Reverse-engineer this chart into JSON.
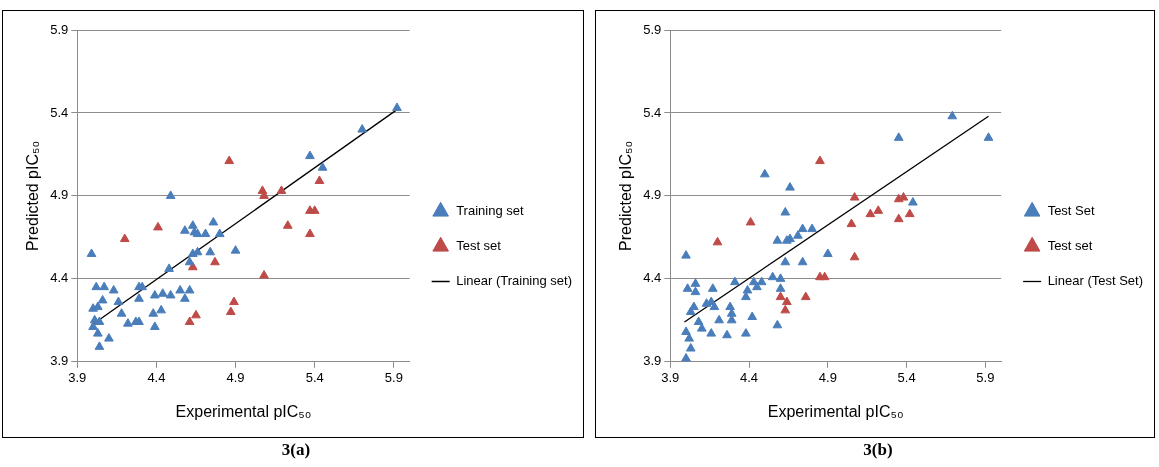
{
  "chart_data": [
    {
      "type": "scatter",
      "title": "3(a)",
      "xlabel": "Experimental pIC₅₀",
      "ylabel": "Predicted pIC₅₀",
      "xlim": [
        3.9,
        6.0
      ],
      "ylim": [
        3.9,
        5.9
      ],
      "xticks": [
        3.9,
        4.4,
        4.9,
        5.4,
        5.9
      ],
      "yticks": [
        3.9,
        4.4,
        4.9,
        5.4,
        5.9
      ],
      "grid": "y",
      "legend": "right",
      "series": [
        {
          "name": "Training set",
          "color": "#4a7ebb",
          "marker": "triangle",
          "x": [
            3.99,
            4.02,
            4.07,
            4.0,
            4.03,
            4.06,
            4.01,
            4.0,
            4.03,
            4.04,
            4.1,
            4.04,
            4.13,
            4.16,
            4.18,
            4.22,
            4.27,
            4.29,
            4.29,
            4.31,
            4.29,
            4.38,
            4.39,
            4.39,
            4.43,
            4.44,
            4.49,
            4.48,
            4.49,
            4.55,
            4.58,
            4.61,
            4.58,
            4.63,
            4.64,
            4.66,
            4.61,
            4.63,
            4.66,
            4.71,
            4.74,
            4.76,
            4.8,
            4.9,
            5.37,
            5.45,
            5.7,
            5.92
          ],
          "values": [
            4.55,
            4.35,
            4.35,
            4.22,
            4.23,
            4.27,
            4.15,
            4.11,
            4.07,
            3.99,
            4.04,
            4.14,
            4.33,
            4.26,
            4.19,
            4.13,
            4.14,
            4.14,
            4.35,
            4.35,
            4.28,
            4.19,
            4.11,
            4.3,
            4.21,
            4.31,
            4.3,
            4.46,
            4.9,
            4.33,
            4.28,
            4.33,
            4.69,
            4.72,
            4.68,
            4.67,
            4.5,
            4.55,
            4.56,
            4.67,
            4.56,
            4.74,
            4.67,
            4.57,
            5.14,
            5.07,
            5.3,
            5.43
          ]
        },
        {
          "name": "Test set",
          "color": "#be4b48",
          "marker": "triangle",
          "x": [
            4.86,
            4.41,
            4.2,
            4.63,
            4.77,
            4.61,
            4.65,
            4.87,
            4.89,
            5.07,
            5.08,
            5.19,
            5.43,
            5.37,
            5.4,
            5.23,
            5.37,
            5.08
          ],
          "values": [
            5.11,
            4.71,
            4.64,
            4.47,
            4.5,
            4.14,
            4.18,
            4.2,
            4.26,
            4.93,
            4.9,
            4.93,
            4.99,
            4.81,
            4.81,
            4.72,
            4.67,
            4.42
          ]
        },
        {
          "name": "Linear (Training set)",
          "type": "line",
          "marker": "none",
          "color": "#000000",
          "x": [
            3.99,
            5.92
          ],
          "values": [
            4.12,
            5.42
          ]
        }
      ]
    },
    {
      "type": "scatter",
      "title": "3(b)",
      "xlabel": "Experimental pIC₅₀",
      "ylabel": "Predicted pIC₅₀",
      "xlim": [
        3.9,
        6.0
      ],
      "ylim": [
        3.9,
        5.9
      ],
      "xticks": [
        3.9,
        4.4,
        4.9,
        5.4,
        5.9
      ],
      "yticks": [
        3.9,
        4.4,
        4.9,
        5.4,
        5.9
      ],
      "grid": "y",
      "legend": "right",
      "series": [
        {
          "name": "Test Set",
          "color": "#4a7ebb",
          "marker": "triangle",
          "x": [
            4.0,
            4.0,
            4.03,
            4.02,
            4.0,
            4.01,
            4.06,
            4.06,
            4.05,
            4.03,
            4.08,
            4.1,
            4.13,
            4.16,
            4.18,
            4.17,
            4.16,
            4.21,
            4.26,
            4.28,
            4.29,
            4.29,
            4.31,
            4.38,
            4.38,
            4.39,
            4.42,
            4.43,
            4.45,
            4.48,
            4.5,
            4.55,
            4.58,
            4.58,
            4.6,
            4.6,
            4.63,
            4.63,
            4.64,
            4.66,
            4.66,
            4.71,
            4.74,
            4.74,
            4.8,
            4.9,
            5.35,
            5.69,
            5.92,
            5.44
          ],
          "values": [
            4.54,
            3.92,
            3.98,
            4.04,
            4.08,
            4.34,
            4.37,
            4.32,
            4.23,
            4.2,
            4.14,
            4.1,
            4.25,
            4.26,
            4.23,
            4.34,
            4.07,
            4.15,
            4.06,
            4.23,
            4.15,
            4.19,
            4.38,
            4.07,
            4.29,
            4.33,
            4.17,
            4.38,
            4.35,
            4.38,
            5.03,
            4.41,
            4.12,
            4.63,
            4.34,
            4.4,
            4.8,
            4.5,
            4.63,
            4.95,
            4.64,
            4.66,
            4.7,
            4.5,
            4.7,
            4.55,
            5.25,
            5.38,
            5.25,
            4.86
          ]
        },
        {
          "name": "Test set",
          "color": "#be4b48",
          "marker": "triangle",
          "x": [
            4.2,
            4.41,
            4.85,
            4.6,
            4.64,
            4.63,
            4.76,
            4.85,
            4.88,
            5.07,
            5.05,
            5.07,
            5.17,
            5.22,
            5.35,
            5.38,
            5.35,
            5.42
          ],
          "values": [
            4.62,
            4.74,
            5.11,
            4.29,
            4.26,
            4.21,
            4.29,
            4.41,
            4.41,
            4.89,
            4.73,
            4.53,
            4.79,
            4.81,
            4.88,
            4.89,
            4.76,
            4.79
          ]
        },
        {
          "name": "Linear (Test Set)",
          "type": "line",
          "marker": "none",
          "color": "#000000",
          "x": [
            3.99,
            5.92
          ],
          "values": [
            4.14,
            5.38
          ]
        }
      ]
    }
  ]
}
